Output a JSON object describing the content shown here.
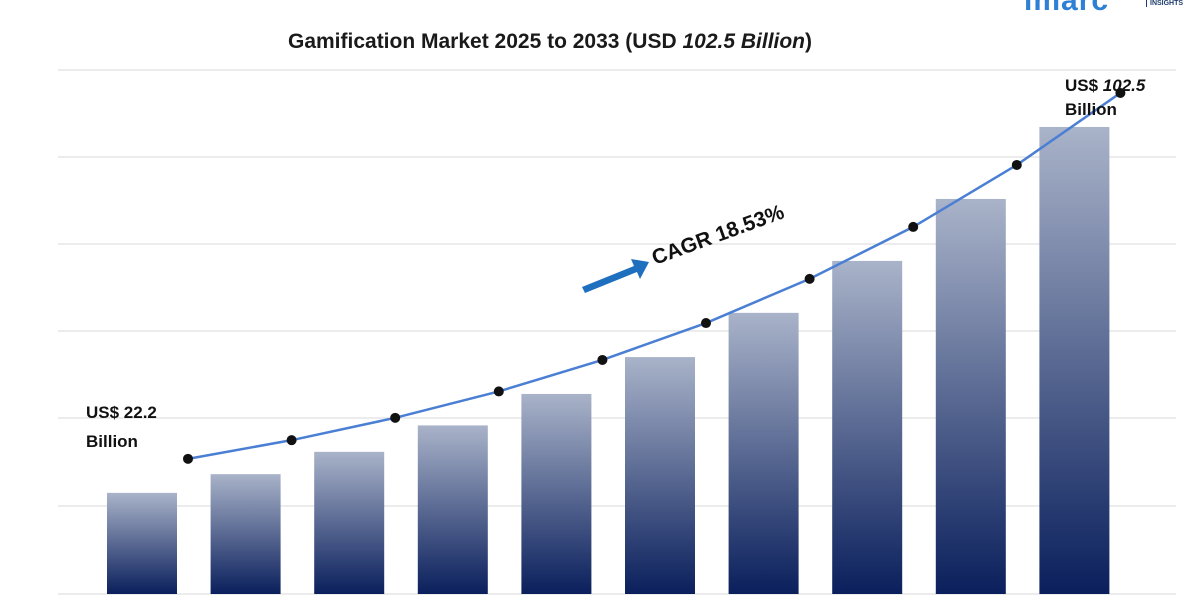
{
  "logo": {
    "text": "imarc",
    "sub": "INSIGHTS"
  },
  "title": {
    "prefix": "Gamification Market 2025 to 2033 (USD ",
    "highlight": "102.5 Billion",
    "suffix": ")"
  },
  "colors": {
    "bar_top": "#a9b3c9",
    "bar_bottom": "#0a1f5c",
    "line": "#4a7fd4",
    "marker": "#111111",
    "grid": "#d9d9d9",
    "arrow": "#1f6fbf"
  },
  "annotations": {
    "start_prefix": "US$ 22.2",
    "start_suffix": "Billion",
    "end_prefix": "US$ ",
    "end_value": "102.5",
    "end_suffix": "Billion",
    "cagr": "CAGR 18.53%"
  },
  "chart_data": {
    "type": "bar",
    "title": "Gamification Market 2025 to 2033 (USD 102.5 Billion)",
    "categories": [
      "",
      "",
      "",
      "",
      "",
      "",
      "",
      "",
      "",
      ""
    ],
    "series": [
      {
        "values": [
          22.2,
          26.3,
          31.2,
          37.0,
          43.9,
          52.0,
          61.7,
          73.1,
          86.7,
          102.5
        ]
      }
    ],
    "trend_line": [
      22.2,
      26.3,
      31.2,
      37.0,
      43.9,
      52.0,
      61.7,
      73.1,
      86.7,
      102.5
    ],
    "ylim": [
      0,
      115
    ],
    "grid": true,
    "legend": "none",
    "xlabel": "",
    "ylabel": ""
  }
}
